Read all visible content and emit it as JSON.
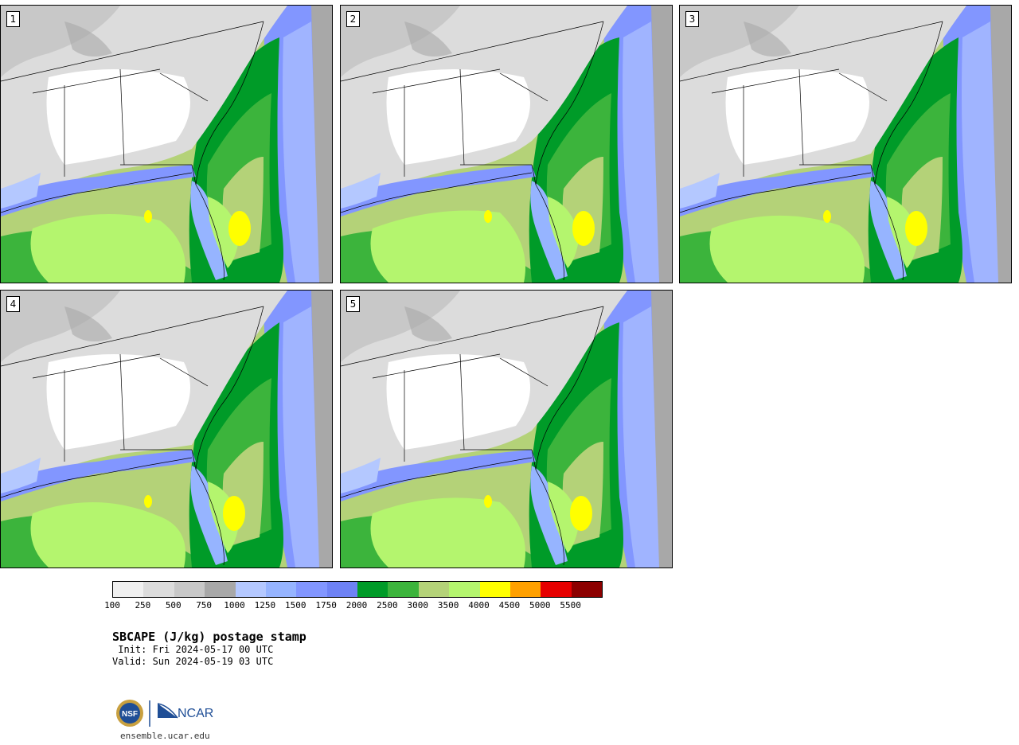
{
  "panels": [
    {
      "label": "1"
    },
    {
      "label": "2"
    },
    {
      "label": "3"
    },
    {
      "label": "4"
    },
    {
      "label": "5"
    }
  ],
  "colorbar": {
    "colors": [
      "#f0f0f0",
      "#dcdcdc",
      "#c8c8c8",
      "#a8a8a8",
      "#b4c8ff",
      "#96b4ff",
      "#8296ff",
      "#6e82f5",
      "#009b28",
      "#3cb43c",
      "#b4d278",
      "#b4f56e",
      "#ffff00",
      "#ffa000",
      "#e60000",
      "#8c0000"
    ],
    "ticks": [
      "100",
      "250",
      "500",
      "750",
      "1000",
      "1250",
      "1500",
      "1750",
      "2000",
      "2500",
      "3000",
      "3500",
      "4000",
      "4500",
      "5000",
      "5500"
    ]
  },
  "title": "SBCAPE (J/kg) postage stamp",
  "init": " Init: Fri 2024-05-17 00 UTC",
  "valid": "Valid: Sun 2024-05-19 03 UTC",
  "logo": {
    "nsf": "NSF",
    "ncar": "NCAR"
  },
  "site": "ensemble.ucar.edu"
}
